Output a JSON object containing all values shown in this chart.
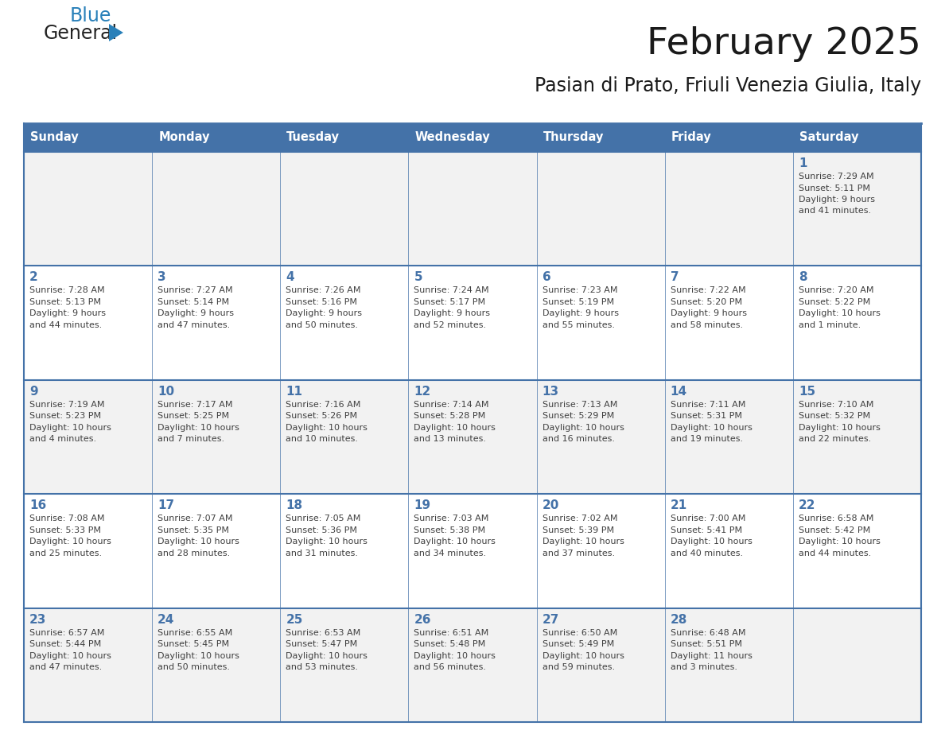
{
  "title": "February 2025",
  "subtitle": "Pasian di Prato, Friuli Venezia Giulia, Italy",
  "days_of_week": [
    "Sunday",
    "Monday",
    "Tuesday",
    "Wednesday",
    "Thursday",
    "Friday",
    "Saturday"
  ],
  "header_bg": "#4472A8",
  "header_text": "#FFFFFF",
  "row0_bg": "#F2F2F2",
  "row1_bg": "#FFFFFF",
  "row2_bg": "#F2F2F2",
  "row3_bg": "#FFFFFF",
  "row4_bg": "#F2F2F2",
  "border_color": "#4472A8",
  "day_number_color": "#4472A8",
  "text_color": "#404040",
  "calendar_data": [
    {
      "day": 1,
      "col": 6,
      "row": 0,
      "sunrise": "7:29 AM",
      "sunset": "5:11 PM",
      "daylight": "9 hours and 41 minutes."
    },
    {
      "day": 2,
      "col": 0,
      "row": 1,
      "sunrise": "7:28 AM",
      "sunset": "5:13 PM",
      "daylight": "9 hours and 44 minutes."
    },
    {
      "day": 3,
      "col": 1,
      "row": 1,
      "sunrise": "7:27 AM",
      "sunset": "5:14 PM",
      "daylight": "9 hours and 47 minutes."
    },
    {
      "day": 4,
      "col": 2,
      "row": 1,
      "sunrise": "7:26 AM",
      "sunset": "5:16 PM",
      "daylight": "9 hours and 50 minutes."
    },
    {
      "day": 5,
      "col": 3,
      "row": 1,
      "sunrise": "7:24 AM",
      "sunset": "5:17 PM",
      "daylight": "9 hours and 52 minutes."
    },
    {
      "day": 6,
      "col": 4,
      "row": 1,
      "sunrise": "7:23 AM",
      "sunset": "5:19 PM",
      "daylight": "9 hours and 55 minutes."
    },
    {
      "day": 7,
      "col": 5,
      "row": 1,
      "sunrise": "7:22 AM",
      "sunset": "5:20 PM",
      "daylight": "9 hours and 58 minutes."
    },
    {
      "day": 8,
      "col": 6,
      "row": 1,
      "sunrise": "7:20 AM",
      "sunset": "5:22 PM",
      "daylight": "10 hours and 1 minute."
    },
    {
      "day": 9,
      "col": 0,
      "row": 2,
      "sunrise": "7:19 AM",
      "sunset": "5:23 PM",
      "daylight": "10 hours and 4 minutes."
    },
    {
      "day": 10,
      "col": 1,
      "row": 2,
      "sunrise": "7:17 AM",
      "sunset": "5:25 PM",
      "daylight": "10 hours and 7 minutes."
    },
    {
      "day": 11,
      "col": 2,
      "row": 2,
      "sunrise": "7:16 AM",
      "sunset": "5:26 PM",
      "daylight": "10 hours and 10 minutes."
    },
    {
      "day": 12,
      "col": 3,
      "row": 2,
      "sunrise": "7:14 AM",
      "sunset": "5:28 PM",
      "daylight": "10 hours and 13 minutes."
    },
    {
      "day": 13,
      "col": 4,
      "row": 2,
      "sunrise": "7:13 AM",
      "sunset": "5:29 PM",
      "daylight": "10 hours and 16 minutes."
    },
    {
      "day": 14,
      "col": 5,
      "row": 2,
      "sunrise": "7:11 AM",
      "sunset": "5:31 PM",
      "daylight": "10 hours and 19 minutes."
    },
    {
      "day": 15,
      "col": 6,
      "row": 2,
      "sunrise": "7:10 AM",
      "sunset": "5:32 PM",
      "daylight": "10 hours and 22 minutes."
    },
    {
      "day": 16,
      "col": 0,
      "row": 3,
      "sunrise": "7:08 AM",
      "sunset": "5:33 PM",
      "daylight": "10 hours and 25 minutes."
    },
    {
      "day": 17,
      "col": 1,
      "row": 3,
      "sunrise": "7:07 AM",
      "sunset": "5:35 PM",
      "daylight": "10 hours and 28 minutes."
    },
    {
      "day": 18,
      "col": 2,
      "row": 3,
      "sunrise": "7:05 AM",
      "sunset": "5:36 PM",
      "daylight": "10 hours and 31 minutes."
    },
    {
      "day": 19,
      "col": 3,
      "row": 3,
      "sunrise": "7:03 AM",
      "sunset": "5:38 PM",
      "daylight": "10 hours and 34 minutes."
    },
    {
      "day": 20,
      "col": 4,
      "row": 3,
      "sunrise": "7:02 AM",
      "sunset": "5:39 PM",
      "daylight": "10 hours and 37 minutes."
    },
    {
      "day": 21,
      "col": 5,
      "row": 3,
      "sunrise": "7:00 AM",
      "sunset": "5:41 PM",
      "daylight": "10 hours and 40 minutes."
    },
    {
      "day": 22,
      "col": 6,
      "row": 3,
      "sunrise": "6:58 AM",
      "sunset": "5:42 PM",
      "daylight": "10 hours and 44 minutes."
    },
    {
      "day": 23,
      "col": 0,
      "row": 4,
      "sunrise": "6:57 AM",
      "sunset": "5:44 PM",
      "daylight": "10 hours and 47 minutes."
    },
    {
      "day": 24,
      "col": 1,
      "row": 4,
      "sunrise": "6:55 AM",
      "sunset": "5:45 PM",
      "daylight": "10 hours and 50 minutes."
    },
    {
      "day": 25,
      "col": 2,
      "row": 4,
      "sunrise": "6:53 AM",
      "sunset": "5:47 PM",
      "daylight": "10 hours and 53 minutes."
    },
    {
      "day": 26,
      "col": 3,
      "row": 4,
      "sunrise": "6:51 AM",
      "sunset": "5:48 PM",
      "daylight": "10 hours and 56 minutes."
    },
    {
      "day": 27,
      "col": 4,
      "row": 4,
      "sunrise": "6:50 AM",
      "sunset": "5:49 PM",
      "daylight": "10 hours and 59 minutes."
    },
    {
      "day": 28,
      "col": 5,
      "row": 4,
      "sunrise": "6:48 AM",
      "sunset": "5:51 PM",
      "daylight": "11 hours and 3 minutes."
    }
  ],
  "num_rows": 5,
  "logo_general_color": "#222222",
  "logo_blue_color": "#2980B9",
  "logo_triangle_color": "#2980B9",
  "fig_width": 11.88,
  "fig_height": 9.18,
  "dpi": 100
}
